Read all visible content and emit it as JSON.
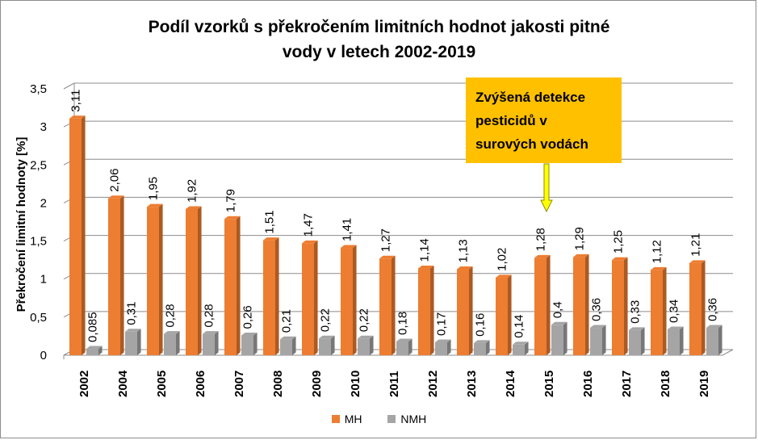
{
  "chart_data": {
    "type": "bar",
    "title_lines": [
      "Podíl vzorků s překročením limitních hodnot jakosti pitné",
      "vody v letech 2002-2019"
    ],
    "xlabel": "",
    "ylabel": "Překročení limitní hodnoty [%]",
    "categories": [
      "2002",
      "2004",
      "2005",
      "2006",
      "2007",
      "2008",
      "2009",
      "2010",
      "2011",
      "2012",
      "2013",
      "2014",
      "2015",
      "2016",
      "2017",
      "2018",
      "2019"
    ],
    "series": [
      {
        "name": "MH",
        "color": "#ed7d31",
        "values": [
          3.11,
          2.06,
          1.95,
          1.92,
          1.79,
          1.51,
          1.47,
          1.41,
          1.27,
          1.14,
          1.13,
          1.02,
          1.28,
          1.29,
          1.25,
          1.12,
          1.21
        ],
        "labels": [
          "3,11",
          "2,06",
          "1,95",
          "1,92",
          "1,79",
          "1,51",
          "1,47",
          "1,41",
          "1,27",
          "1,14",
          "1,13",
          "1,02",
          "1,28",
          "1,29",
          "1,25",
          "1,12",
          "1,21"
        ]
      },
      {
        "name": "NMH",
        "color": "#a5a5a5",
        "values": [
          0.085,
          0.31,
          0.28,
          0.28,
          0.26,
          0.21,
          0.22,
          0.22,
          0.18,
          0.17,
          0.16,
          0.14,
          0.4,
          0.36,
          0.33,
          0.34,
          0.36
        ],
        "labels": [
          "0,085",
          "0,31",
          "0,28",
          "0,28",
          "0,26",
          "0,21",
          "0,22",
          "0,22",
          "0,18",
          "0,17",
          "0,16",
          "0,14",
          "0,4",
          "0,36",
          "0,33",
          "0,34",
          "0,36"
        ]
      }
    ],
    "ylim": [
      0,
      3.5
    ],
    "yticks": [
      0,
      0.5,
      1,
      1.5,
      2,
      2.5,
      3,
      3.5
    ],
    "ytick_labels": [
      "0",
      "0,5",
      "1",
      "1,5",
      "2",
      "2,5",
      "3",
      "3,5"
    ],
    "grid": true,
    "legend_position": "bottom",
    "annotation": {
      "lines": [
        "Zvýšená detekce",
        "pesticidů v",
        "surových vodách"
      ],
      "color": "#ffc000",
      "arrow_color": "#ffff00",
      "points_to_category": "2015"
    }
  }
}
